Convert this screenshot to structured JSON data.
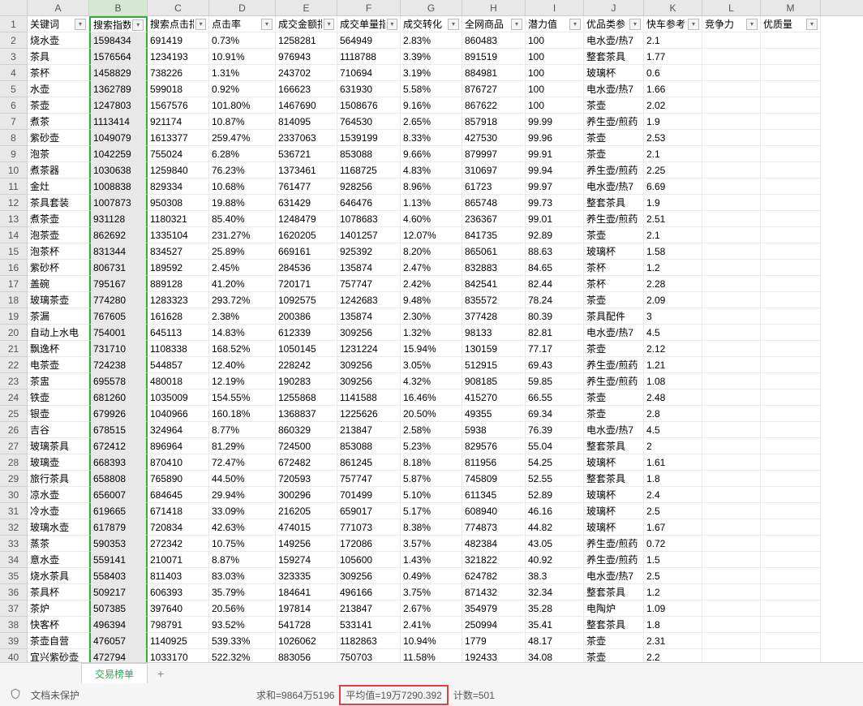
{
  "columns": {
    "letters": [
      "A",
      "B",
      "C",
      "D",
      "E",
      "F",
      "G",
      "H",
      "I",
      "J",
      "K",
      "L",
      "M"
    ],
    "widths": [
      "76px",
      "72px",
      "76px",
      "82px",
      "76px",
      "78px",
      "76px",
      "78px",
      "72px",
      "74px",
      "72px",
      "72px",
      "74px"
    ],
    "selected_index": 1
  },
  "headers": [
    "关键词",
    "搜索指数",
    "搜索点击指",
    "点击率",
    "成交金额指",
    "成交单量指",
    "成交转化",
    "全网商品",
    "潜力值",
    "优品类参",
    "快车参考",
    "竞争力",
    "优质量"
  ],
  "rows": [
    {
      "n": 1,
      "v": [
        "关键词",
        "搜索指数",
        "搜索点击指",
        "点击率",
        "成交金额指",
        "成交单量指",
        "成交转化",
        "全网商品",
        "潜力值",
        "优品类参",
        "快车参考",
        "竞争力",
        "优质量"
      ]
    },
    {
      "n": 2,
      "v": [
        "烧水壶",
        "1598434",
        "691419",
        "0.73%",
        "1258281",
        "564949",
        "2.83%",
        "860483",
        "100",
        "电水壶/热7",
        "2.1",
        "",
        ""
      ]
    },
    {
      "n": 3,
      "v": [
        "茶具",
        "1576564",
        "1234193",
        "10.91%",
        "976943",
        "1118788",
        "3.39%",
        "891519",
        "100",
        "整套茶具",
        "1.77",
        "",
        ""
      ]
    },
    {
      "n": 4,
      "v": [
        "茶杯",
        "1458829",
        "738226",
        "1.31%",
        "243702",
        "710694",
        "3.19%",
        "884981",
        "100",
        "玻璃杯",
        "0.6",
        "",
        ""
      ]
    },
    {
      "n": 5,
      "v": [
        "水壶",
        "1362789",
        "599018",
        "0.92%",
        "166623",
        "631930",
        "5.58%",
        "876727",
        "100",
        "电水壶/热7",
        "1.66",
        "",
        ""
      ]
    },
    {
      "n": 6,
      "v": [
        "茶壶",
        "1247803",
        "1567576",
        "101.80%",
        "1467690",
        "1508676",
        "9.16%",
        "867622",
        "100",
        "茶壶",
        "2.02",
        "",
        ""
      ]
    },
    {
      "n": 7,
      "v": [
        "煮茶",
        "1113414",
        "921174",
        "10.87%",
        "814095",
        "764530",
        "2.65%",
        "857918",
        "99.99",
        "养生壶/煎药",
        "1.9",
        "",
        ""
      ]
    },
    {
      "n": 8,
      "v": [
        "紫砂壶",
        "1049079",
        "1613377",
        "259.47%",
        "2337063",
        "1539199",
        "8.33%",
        "427530",
        "99.96",
        "茶壶",
        "2.53",
        "",
        ""
      ]
    },
    {
      "n": 9,
      "v": [
        "泡茶",
        "1042259",
        "755024",
        "6.28%",
        "536721",
        "853088",
        "9.66%",
        "879997",
        "99.91",
        "茶壶",
        "2.1",
        "",
        ""
      ]
    },
    {
      "n": 10,
      "v": [
        "煮茶器",
        "1030638",
        "1259840",
        "76.23%",
        "1373461",
        "1168725",
        "4.83%",
        "310697",
        "99.94",
        "养生壶/煎药",
        "2.25",
        "",
        ""
      ]
    },
    {
      "n": 11,
      "v": [
        "金灶",
        "1008838",
        "829334",
        "10.68%",
        "761477",
        "928256",
        "8.96%",
        "61723",
        "99.97",
        "电水壶/热7",
        "6.69",
        "",
        ""
      ]
    },
    {
      "n": 12,
      "v": [
        "茶具套装",
        "1007873",
        "950308",
        "19.88%",
        "631429",
        "646476",
        "1.13%",
        "865748",
        "99.73",
        "整套茶具",
        "1.9",
        "",
        ""
      ]
    },
    {
      "n": 13,
      "v": [
        "煮茶壶",
        "931128",
        "1180321",
        "85.40%",
        "1248479",
        "1078683",
        "4.60%",
        "236367",
        "99.01",
        "养生壶/煎药",
        "2.51",
        "",
        ""
      ]
    },
    {
      "n": 14,
      "v": [
        "泡茶壶",
        "862692",
        "1335104",
        "231.27%",
        "1620205",
        "1401257",
        "12.07%",
        "841735",
        "92.89",
        "茶壶",
        "2.1",
        "",
        ""
      ]
    },
    {
      "n": 15,
      "v": [
        "泡茶杯",
        "831344",
        "834527",
        "25.89%",
        "669161",
        "925392",
        "8.20%",
        "865061",
        "88.63",
        "玻璃杯",
        "1.58",
        "",
        ""
      ]
    },
    {
      "n": 16,
      "v": [
        "紫砂杯",
        "806731",
        "189592",
        "2.45%",
        "284536",
        "135874",
        "2.47%",
        "832883",
        "84.65",
        "茶杯",
        "1.2",
        "",
        ""
      ]
    },
    {
      "n": 17,
      "v": [
        "盖碗",
        "795167",
        "889128",
        "41.20%",
        "720171",
        "757747",
        "2.42%",
        "842541",
        "82.44",
        "茶杯",
        "2.28",
        "",
        ""
      ]
    },
    {
      "n": 18,
      "v": [
        "玻璃茶壶",
        "774280",
        "1283323",
        "293.72%",
        "1092575",
        "1242683",
        "9.48%",
        "835572",
        "78.24",
        "茶壶",
        "2.09",
        "",
        ""
      ]
    },
    {
      "n": 19,
      "v": [
        "茶漏",
        "767605",
        "161628",
        "2.38%",
        "200386",
        "135874",
        "2.30%",
        "377428",
        "80.39",
        "茶具配件",
        "3",
        "",
        ""
      ]
    },
    {
      "n": 20,
      "v": [
        "自动上水电",
        "754001",
        "645113",
        "14.83%",
        "612339",
        "309256",
        "1.32%",
        "98133",
        "82.81",
        "电水壶/热7",
        "4.5",
        "",
        ""
      ]
    },
    {
      "n": 21,
      "v": [
        "飘逸杯",
        "731710",
        "1108338",
        "168.52%",
        "1050145",
        "1231224",
        "15.94%",
        "130159",
        "77.17",
        "茶壶",
        "2.12",
        "",
        ""
      ]
    },
    {
      "n": 22,
      "v": [
        "电茶壶",
        "724238",
        "544857",
        "12.40%",
        "228242",
        "309256",
        "3.05%",
        "512915",
        "69.43",
        "养生壶/煎药",
        "1.21",
        "",
        ""
      ]
    },
    {
      "n": 23,
      "v": [
        "茶盅",
        "695578",
        "480018",
        "12.19%",
        "190283",
        "309256",
        "4.32%",
        "908185",
        "59.85",
        "养生壶/煎药",
        "1.08",
        "",
        ""
      ]
    },
    {
      "n": 24,
      "v": [
        "铁壶",
        "681260",
        "1035009",
        "154.55%",
        "1255868",
        "1141588",
        "16.46%",
        "415270",
        "66.55",
        "茶壶",
        "2.48",
        "",
        ""
      ]
    },
    {
      "n": 25,
      "v": [
        "银壶",
        "679926",
        "1040966",
        "160.18%",
        "1368837",
        "1225626",
        "20.50%",
        "49355",
        "69.34",
        "茶壶",
        "2.8",
        "",
        ""
      ]
    },
    {
      "n": 26,
      "v": [
        "吉谷",
        "678515",
        "324964",
        "8.77%",
        "860329",
        "213847",
        "2.58%",
        "5938",
        "76.39",
        "电水壶/热7",
        "4.5",
        "",
        ""
      ]
    },
    {
      "n": 27,
      "v": [
        "玻璃茶具",
        "672412",
        "896964",
        "81.29%",
        "724500",
        "853088",
        "5.23%",
        "829576",
        "55.04",
        "整套茶具",
        "2",
        "",
        ""
      ]
    },
    {
      "n": 28,
      "v": [
        "玻璃壶",
        "668393",
        "870410",
        "72.47%",
        "672482",
        "861245",
        "8.18%",
        "811956",
        "54.25",
        "玻璃杯",
        "1.61",
        "",
        ""
      ]
    },
    {
      "n": 29,
      "v": [
        "旅行茶具",
        "658808",
        "765890",
        "44.50%",
        "720593",
        "757747",
        "5.87%",
        "745809",
        "52.55",
        "整套茶具",
        "1.8",
        "",
        ""
      ]
    },
    {
      "n": 30,
      "v": [
        "凉水壶",
        "656007",
        "684645",
        "29.94%",
        "300296",
        "701499",
        "5.10%",
        "611345",
        "52.89",
        "玻璃杯",
        "2.4",
        "",
        ""
      ]
    },
    {
      "n": 31,
      "v": [
        "冷水壶",
        "619665",
        "671418",
        "33.09%",
        "216205",
        "659017",
        "5.17%",
        "608940",
        "46.16",
        "玻璃杯",
        "2.5",
        "",
        ""
      ]
    },
    {
      "n": 32,
      "v": [
        "玻璃水壶",
        "617879",
        "720834",
        "42.63%",
        "474015",
        "771073",
        "8.38%",
        "774873",
        "44.82",
        "玻璃杯",
        "1.67",
        "",
        ""
      ]
    },
    {
      "n": 33,
      "v": [
        "蒸茶",
        "590353",
        "272342",
        "10.75%",
        "149256",
        "172086",
        "3.57%",
        "482384",
        "43.05",
        "养生壶/煎药",
        "0.72",
        "",
        ""
      ]
    },
    {
      "n": 34,
      "v": [
        "意水壶",
        "559141",
        "210071",
        "8.87%",
        "159274",
        "105600",
        "1.43%",
        "321822",
        "40.92",
        "养生壶/煎药",
        "1.5",
        "",
        ""
      ]
    },
    {
      "n": 35,
      "v": [
        "烧水茶具",
        "558403",
        "811403",
        "83.03%",
        "323335",
        "309256",
        "0.49%",
        "624782",
        "38.3",
        "电水壶/热7",
        "2.5",
        "",
        ""
      ]
    },
    {
      "n": 36,
      "v": [
        "茶具杯",
        "509217",
        "606393",
        "35.79%",
        "184641",
        "496166",
        "3.75%",
        "871432",
        "32.34",
        "整套茶具",
        "1.2",
        "",
        ""
      ]
    },
    {
      "n": 37,
      "v": [
        "茶炉",
        "507385",
        "397640",
        "20.56%",
        "197814",
        "213847",
        "2.67%",
        "354979",
        "35.28",
        "电陶炉",
        "1.09",
        "",
        ""
      ]
    },
    {
      "n": 38,
      "v": [
        "快客杯",
        "496394",
        "798791",
        "93.52%",
        "541728",
        "533141",
        "2.41%",
        "250994",
        "35.41",
        "整套茶具",
        "1.8",
        "",
        ""
      ]
    },
    {
      "n": 39,
      "v": [
        "茶壶自营",
        "476057",
        "1140925",
        "539.33%",
        "1026062",
        "1182863",
        "10.94%",
        "1779",
        "48.17",
        "茶壶",
        "2.31",
        "",
        ""
      ]
    },
    {
      "n": 40,
      "v": [
        "宜兴紫砂壶",
        "472794",
        "1033170",
        "522.32%",
        "883056",
        "750703",
        "11.58%",
        "192433",
        "34.08",
        "茶壶",
        "2.2",
        "",
        ""
      ]
    }
  ],
  "sheet_tab": "交易榜单",
  "status": {
    "protect_text": "文档未保护",
    "sum_label": "求和=9864万5196",
    "avg_label": "平均值=19万7290.392",
    "count_label": "计数=501"
  },
  "colors": {
    "selection_green": "#3ba83b",
    "fill_gray": "#e8e8e8",
    "red_box": "#e04040",
    "tab_green": "#22aa55"
  }
}
